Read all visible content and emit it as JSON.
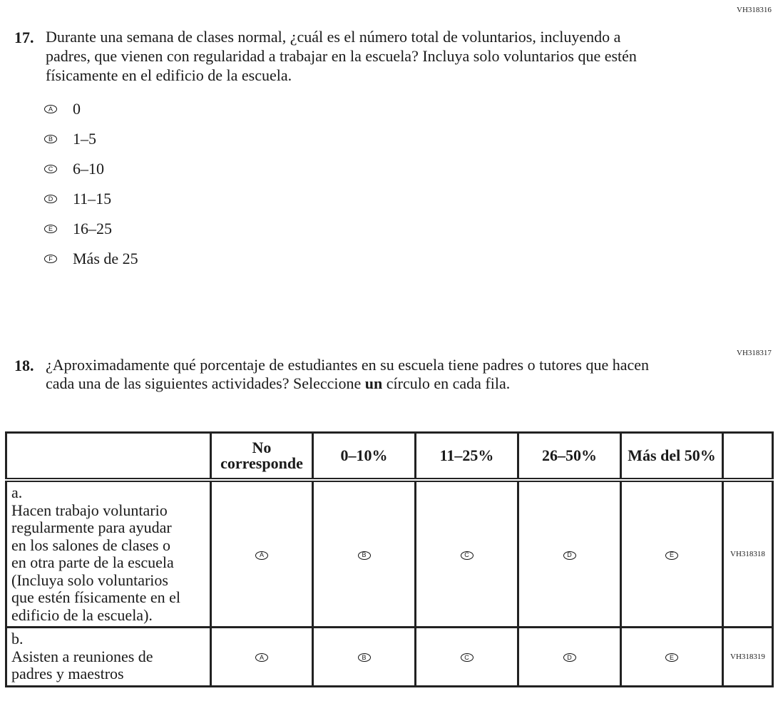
{
  "q17": {
    "code": "VH318316",
    "number": "17.",
    "text": "Durante una semana de clases normal, ¿cuál es el número total de voluntarios, incluyendo a padres, que vienen con regularidad a trabajar en la escuela? Incluya solo voluntarios que estén físicamente en el edificio de la escuela.",
    "options": [
      {
        "letter": "A",
        "label": "0"
      },
      {
        "letter": "B",
        "label": "1–5"
      },
      {
        "letter": "C",
        "label": "6–10"
      },
      {
        "letter": "D",
        "label": "11–15"
      },
      {
        "letter": "E",
        "label": "16–25"
      },
      {
        "letter": "F",
        "label": "Más de 25"
      }
    ]
  },
  "q18": {
    "code": "VH318317",
    "number": "18.",
    "text_before": "¿Aproximadamente qué porcentaje de estudiantes en su escuela tiene padres o tutores que hacen cada una de las siguientes actividades? Seleccione ",
    "text_bold": "un",
    "text_after": " círculo en cada fila.",
    "columns": [
      "No corresponde",
      "0–10%",
      "11–25%",
      "26–50%",
      "Más del 50%"
    ],
    "letters": [
      "A",
      "B",
      "C",
      "D",
      "E"
    ],
    "rows": [
      {
        "label": "a.",
        "text": "Hacen trabajo voluntario regularmente para ayudar en los salones de clases o en otra parte de la escuela (Incluya solo voluntarios que estén físicamente en el edificio de la escuela).",
        "code": "VH318318"
      },
      {
        "label": "b.",
        "text": "Asisten a reuniones de padres y maestros",
        "code": "VH318319"
      }
    ]
  }
}
